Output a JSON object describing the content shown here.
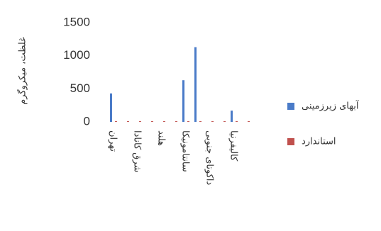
{
  "chart_data": {
    "type": "bar",
    "y_label": "غلظت، میکروگرم",
    "categories": [
      "تهران",
      null,
      "شرق کانادا",
      null,
      "هلند",
      null,
      "سانتامونیکا",
      null,
      "داکوتای جنوبی",
      null,
      "کالیفرنیا",
      null
    ],
    "series": [
      {
        "name": "آبهای زیرزمینی",
        "color": "#4a7bc8",
        "values": [
          430,
          0,
          0,
          0,
          0,
          0,
          630,
          1130,
          0,
          0,
          170,
          0
        ]
      },
      {
        "name": "استاندارد",
        "color": "#c0504d",
        "values": [
          10,
          10,
          10,
          10,
          10,
          10,
          10,
          10,
          10,
          10,
          10,
          10
        ]
      }
    ],
    "ylim": [
      0,
      1500
    ],
    "yticks": [
      0,
      500,
      1000,
      1500
    ],
    "legend": "right"
  }
}
